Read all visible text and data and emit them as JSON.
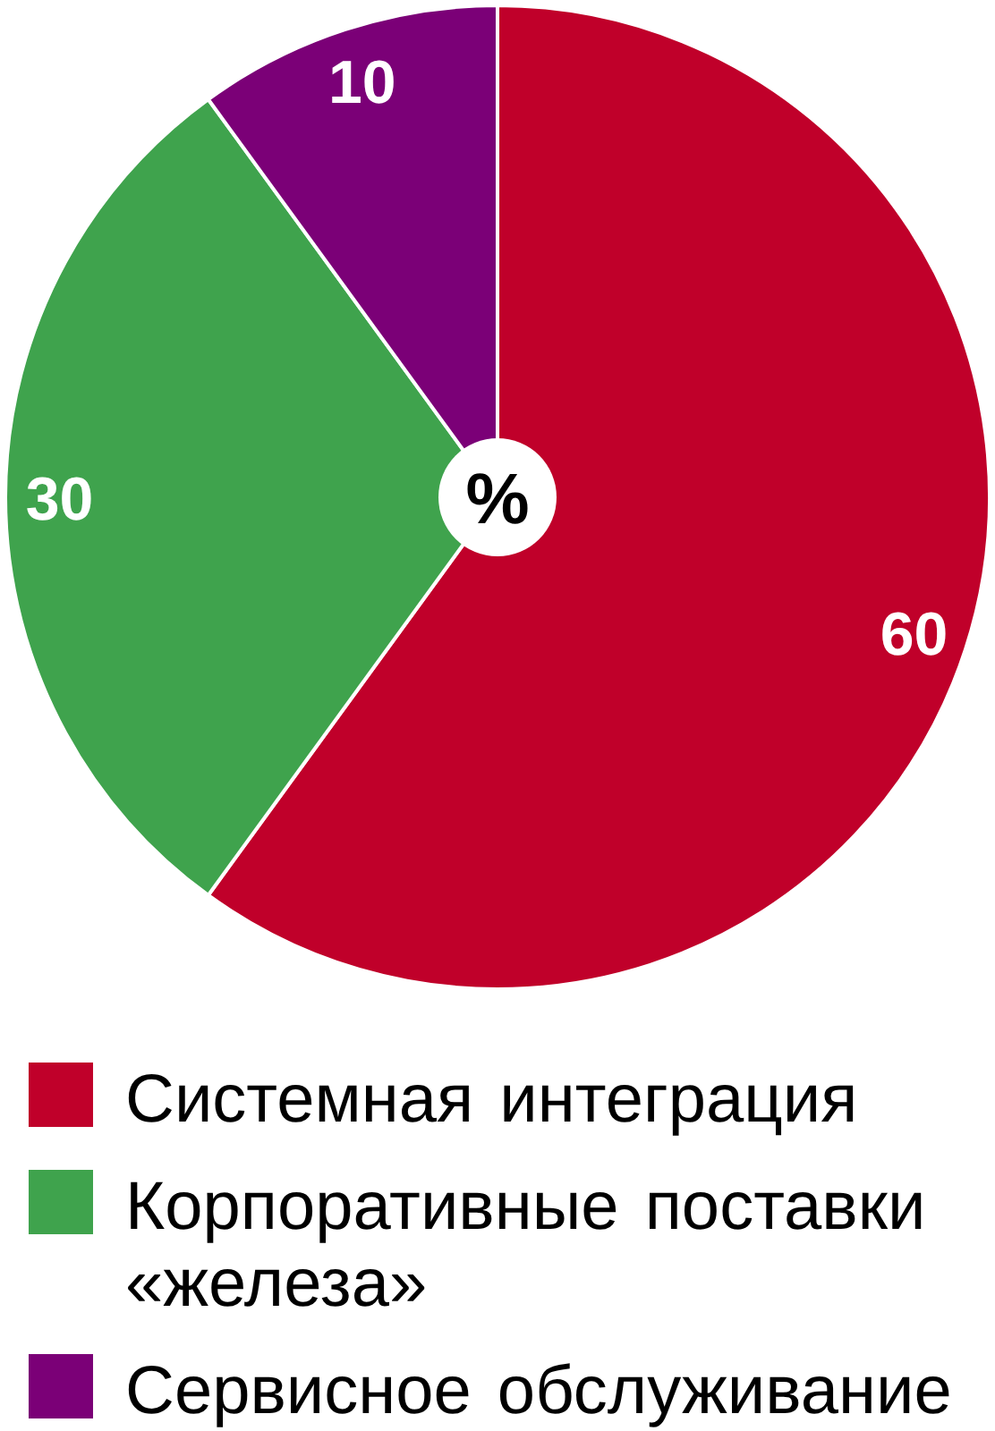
{
  "chart_data": {
    "type": "pie",
    "categories": [
      "Системная интеграция",
      "Корпоративные поставки «железа»",
      "Сервисное обслуживание"
    ],
    "values": [
      60,
      30,
      10
    ],
    "colors": [
      "#c0002a",
      "#3fa34d",
      "#7b0077"
    ],
    "data_labels": true,
    "legend": "bottom",
    "annotations": [
      "%"
    ]
  }
}
